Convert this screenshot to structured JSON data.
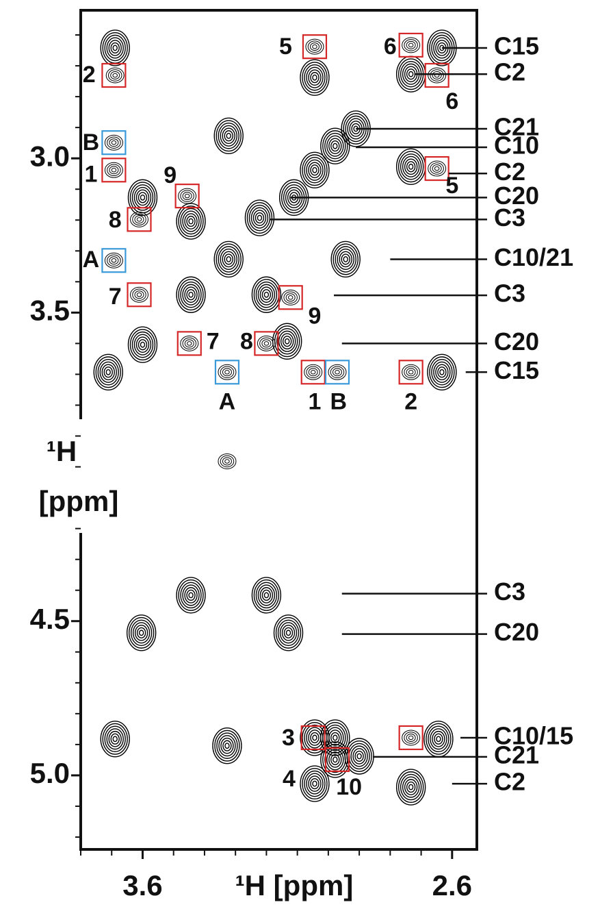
{
  "chart_data": {
    "type": "nmr-contour",
    "xlabel": "¹H [ppm]",
    "ylabel_lines": [
      "¹H",
      "[ppm]"
    ],
    "xlim": [
      3.8,
      2.52
    ],
    "ylim": [
      2.52,
      5.24
    ],
    "xticks": [
      3.6,
      2.6
    ],
    "xminor": [
      3.8,
      3.7,
      3.5,
      3.4,
      3.3,
      3.2,
      3.1,
      3.0,
      2.9,
      2.8,
      2.7
    ],
    "yticks": [
      {
        "value": 3.0,
        "label": "3.0"
      },
      3.5,
      4.5,
      {
        "value": 5.0,
        "label": "5.0"
      }
    ],
    "yminor": [
      2.6,
      2.7,
      2.8,
      2.9,
      3.1,
      3.2,
      3.3,
      3.4,
      3.6,
      3.7,
      3.8,
      3.9,
      4.0,
      4.1,
      4.2,
      4.3,
      4.4,
      4.6,
      4.7,
      4.8,
      4.9,
      5.1,
      5.2
    ],
    "peak_color": "#000000",
    "peaks": [
      {
        "x": 3.689,
        "y": 2.642,
        "kind": "strong"
      },
      {
        "x": 3.044,
        "y": 2.738,
        "kind": "strong"
      },
      {
        "x": 2.733,
        "y": 2.727,
        "kind": "strong"
      },
      {
        "x": 2.633,
        "y": 2.642,
        "kind": "strong"
      },
      {
        "x": 3.322,
        "y": 2.927,
        "kind": "strong"
      },
      {
        "x": 2.911,
        "y": 2.904,
        "kind": "strong"
      },
      {
        "x": 2.978,
        "y": 2.96,
        "kind": "strong"
      },
      {
        "x": 3.044,
        "y": 3.038,
        "kind": "strong"
      },
      {
        "x": 2.733,
        "y": 3.027,
        "kind": "strong"
      },
      {
        "x": 3.6,
        "y": 3.127,
        "kind": "strong"
      },
      {
        "x": 3.111,
        "y": 3.127,
        "kind": "strong"
      },
      {
        "x": 3.444,
        "y": 3.204,
        "kind": "strong"
      },
      {
        "x": 3.222,
        "y": 3.193,
        "kind": "strong"
      },
      {
        "x": 3.322,
        "y": 3.327,
        "kind": "strong"
      },
      {
        "x": 2.944,
        "y": 3.327,
        "kind": "strong"
      },
      {
        "x": 3.444,
        "y": 3.442,
        "kind": "strong"
      },
      {
        "x": 3.2,
        "y": 3.442,
        "kind": "strong"
      },
      {
        "x": 3.6,
        "y": 3.604,
        "kind": "strong"
      },
      {
        "x": 3.133,
        "y": 3.593,
        "kind": "strong"
      },
      {
        "x": 3.711,
        "y": 3.693,
        "kind": "strong"
      },
      {
        "x": 2.633,
        "y": 3.693,
        "kind": "strong"
      },
      {
        "x": 3.444,
        "y": 4.416,
        "kind": "strong"
      },
      {
        "x": 3.2,
        "y": 4.416,
        "kind": "strong"
      },
      {
        "x": 3.604,
        "y": 4.538,
        "kind": "strong"
      },
      {
        "x": 3.129,
        "y": 4.538,
        "kind": "strong"
      },
      {
        "x": 3.689,
        "y": 4.882,
        "kind": "strong"
      },
      {
        "x": 3.327,
        "y": 4.904,
        "kind": "strong"
      },
      {
        "x": 3.044,
        "y": 4.878,
        "kind": "strong"
      },
      {
        "x": 2.978,
        "y": 4.878,
        "kind": "strong"
      },
      {
        "x": 2.644,
        "y": 4.882,
        "kind": "strong"
      },
      {
        "x": 2.9,
        "y": 4.938,
        "kind": "strong"
      },
      {
        "x": 2.978,
        "y": 4.949,
        "kind": "strong"
      },
      {
        "x": 3.044,
        "y": 5.027,
        "kind": "strong"
      },
      {
        "x": 2.733,
        "y": 5.038,
        "kind": "strong"
      },
      {
        "x": 3.689,
        "y": 2.731,
        "kind": "weak"
      },
      {
        "x": 3.044,
        "y": 2.638,
        "kind": "weak"
      },
      {
        "x": 2.733,
        "y": 2.633,
        "kind": "weak"
      },
      {
        "x": 2.649,
        "y": 2.731,
        "kind": "weak"
      },
      {
        "x": 3.693,
        "y": 3.038,
        "kind": "weak"
      },
      {
        "x": 2.649,
        "y": 3.033,
        "kind": "weak"
      },
      {
        "x": 3.456,
        "y": 3.122,
        "kind": "weak"
      },
      {
        "x": 3.611,
        "y": 3.198,
        "kind": "weak"
      },
      {
        "x": 3.611,
        "y": 3.442,
        "kind": "weak"
      },
      {
        "x": 3.122,
        "y": 3.451,
        "kind": "weak"
      },
      {
        "x": 3.449,
        "y": 3.6,
        "kind": "weak"
      },
      {
        "x": 3.2,
        "y": 3.6,
        "kind": "weak"
      },
      {
        "x": 3.049,
        "y": 3.693,
        "kind": "weak"
      },
      {
        "x": 2.971,
        "y": 3.693,
        "kind": "weak"
      },
      {
        "x": 2.733,
        "y": 3.693,
        "kind": "weak"
      },
      {
        "x": 3.327,
        "y": 3.693,
        "kind": "weak"
      },
      {
        "x": 3.693,
        "y": 3.331,
        "kind": "weak"
      },
      {
        "x": 2.733,
        "y": 4.878,
        "kind": "weak"
      },
      {
        "x": 3.327,
        "y": 3.982,
        "kind": "weak"
      },
      {
        "x": 3.693,
        "y": 2.949,
        "kind": "weak"
      }
    ],
    "boxes": [
      {
        "x": 3.693,
        "y": 2.731,
        "color": "#d62728"
      },
      {
        "x": 3.044,
        "y": 2.638,
        "color": "#d62728"
      },
      {
        "x": 2.733,
        "y": 2.633,
        "color": "#d62728"
      },
      {
        "x": 2.649,
        "y": 2.731,
        "color": "#d62728"
      },
      {
        "x": 3.693,
        "y": 3.038,
        "color": "#d62728"
      },
      {
        "x": 2.649,
        "y": 3.033,
        "color": "#d62728"
      },
      {
        "x": 3.456,
        "y": 3.122,
        "color": "#d62728"
      },
      {
        "x": 3.611,
        "y": 3.198,
        "color": "#d62728"
      },
      {
        "x": 3.611,
        "y": 3.442,
        "color": "#d62728"
      },
      {
        "x": 3.122,
        "y": 3.451,
        "color": "#d62728"
      },
      {
        "x": 3.449,
        "y": 3.6,
        "color": "#d62728"
      },
      {
        "x": 3.2,
        "y": 3.6,
        "color": "#d62728"
      },
      {
        "x": 3.049,
        "y": 3.693,
        "color": "#d62728"
      },
      {
        "x": 2.733,
        "y": 3.693,
        "color": "#d62728"
      },
      {
        "x": 3.049,
        "y": 4.878,
        "color": "#d62728"
      },
      {
        "x": 2.971,
        "y": 4.949,
        "color": "#d62728"
      },
      {
        "x": 2.733,
        "y": 4.878,
        "color": "#d62728"
      },
      {
        "x": 3.693,
        "y": 2.949,
        "color": "#3a9ad9"
      },
      {
        "x": 3.693,
        "y": 3.331,
        "color": "#3a9ad9"
      },
      {
        "x": 3.327,
        "y": 3.693,
        "color": "#3a9ad9"
      },
      {
        "x": 2.971,
        "y": 3.693,
        "color": "#3a9ad9"
      }
    ],
    "labels": [
      {
        "text": "2",
        "x": 3.773,
        "y": 2.733
      },
      {
        "text": "5",
        "x": 3.138,
        "y": 2.642
      },
      {
        "text": "6",
        "x": 2.8,
        "y": 2.642
      },
      {
        "text": "6",
        "x": 2.6,
        "y": 2.82
      },
      {
        "text": "B",
        "x": 3.767,
        "y": 2.953
      },
      {
        "text": "1",
        "x": 3.767,
        "y": 3.056
      },
      {
        "text": "9",
        "x": 3.511,
        "y": 3.06
      },
      {
        "text": "5",
        "x": 2.6,
        "y": 3.093
      },
      {
        "text": "8",
        "x": 3.689,
        "y": 3.204
      },
      {
        "text": "A",
        "x": 3.767,
        "y": 3.333
      },
      {
        "text": "7",
        "x": 3.689,
        "y": 3.453
      },
      {
        "text": "9",
        "x": 3.044,
        "y": 3.516
      },
      {
        "text": "7",
        "x": 3.373,
        "y": 3.598
      },
      {
        "text": "8",
        "x": 3.264,
        "y": 3.598
      },
      {
        "text": "A",
        "x": 3.327,
        "y": 3.793
      },
      {
        "text": "1",
        "x": 3.044,
        "y": 3.793
      },
      {
        "text": "B",
        "x": 2.967,
        "y": 3.793
      },
      {
        "text": "2",
        "x": 2.733,
        "y": 3.793
      },
      {
        "text": "3",
        "x": 3.129,
        "y": 4.882
      },
      {
        "text": "4",
        "x": 3.127,
        "y": 5.016
      },
      {
        "text": "10",
        "x": 2.933,
        "y": 5.042
      }
    ],
    "annotations": [
      {
        "text": "C15",
        "y": 2.642,
        "from_x": 2.633
      },
      {
        "text": "C2",
        "y": 2.727,
        "from_x": 2.722
      },
      {
        "text": "C21",
        "y": 2.904,
        "from_x": 2.911
      },
      {
        "text": "C10",
        "y": 2.964,
        "from_x": 2.911
      },
      {
        "text": "C2",
        "y": 3.049,
        "from_x": 2.611
      },
      {
        "text": "C20",
        "y": 3.127,
        "from_x": 3.122
      },
      {
        "text": "C3",
        "y": 3.198,
        "from_x": 3.189
      },
      {
        "text": "C10/21",
        "y": 3.327,
        "from_x": 2.8
      },
      {
        "text": "C3",
        "y": 3.444,
        "from_x": 2.982
      },
      {
        "text": "C20",
        "y": 3.6,
        "from_x": 2.956
      },
      {
        "text": "C15",
        "y": 3.693,
        "from_x": 2.556
      },
      {
        "text": "C3",
        "y": 4.411,
        "from_x": 2.956
      },
      {
        "text": "C20",
        "y": 4.542,
        "from_x": 2.956
      },
      {
        "text": "C10/15",
        "y": 4.878,
        "from_x": 2.573
      },
      {
        "text": "C21",
        "y": 4.94,
        "from_x": 2.856
      },
      {
        "text": "C2",
        "y": 5.027,
        "from_x": 2.6
      }
    ]
  }
}
